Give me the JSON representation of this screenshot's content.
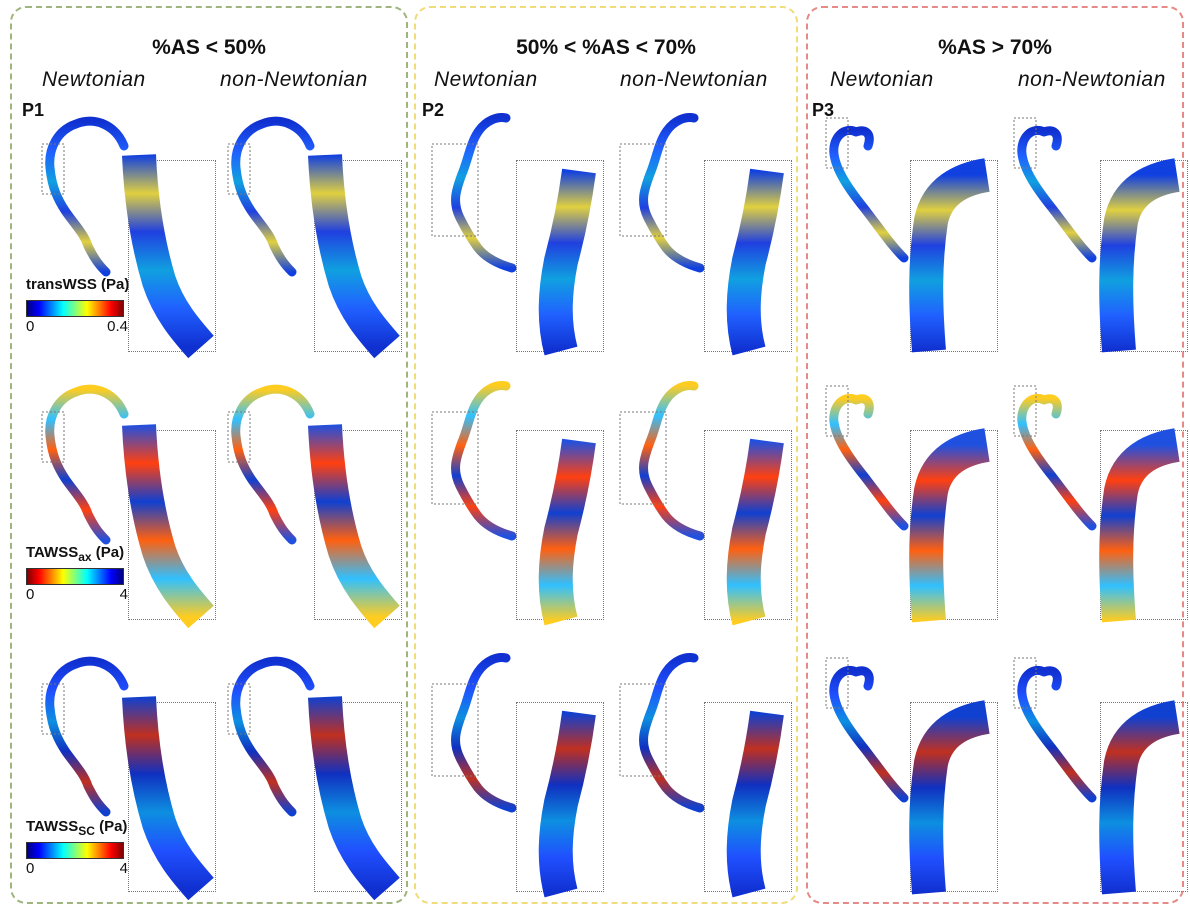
{
  "panels": [
    {
      "id": "P1",
      "title": "%AS < 50%",
      "border_color": "#9fb57e",
      "models": [
        "Newtonian",
        "non-Newtonian"
      ],
      "shape": "p1"
    },
    {
      "id": "P2",
      "title": "50% < %AS < 70%",
      "border_color": "#f0dc7a",
      "models": [
        "Newtonian",
        "non-Newtonian"
      ],
      "shape": "p2"
    },
    {
      "id": "P3",
      "title": "%AS > 70%",
      "border_color": "#e58a86",
      "models": [
        "Newtonian",
        "non-Newtonian"
      ],
      "shape": "p3"
    }
  ],
  "rows": [
    {
      "metric": "transWSS",
      "colorbar": {
        "label": "transWSS (Pa)",
        "sub": "",
        "unit": "",
        "min": "0",
        "max": "0.4",
        "scale": "jet"
      }
    },
    {
      "metric": "TAWSS_ax",
      "colorbar": {
        "label": "TAWSS",
        "sub": "ax",
        "unit": " (Pa)",
        "min": "0",
        "max": "4",
        "scale": "jet-reversed"
      }
    },
    {
      "metric": "TAWSS_sc",
      "colorbar": {
        "label": "TAWSS",
        "sub": "SC",
        "unit": " (Pa)",
        "min": "0",
        "max": "4",
        "scale": "jet"
      }
    }
  ]
}
